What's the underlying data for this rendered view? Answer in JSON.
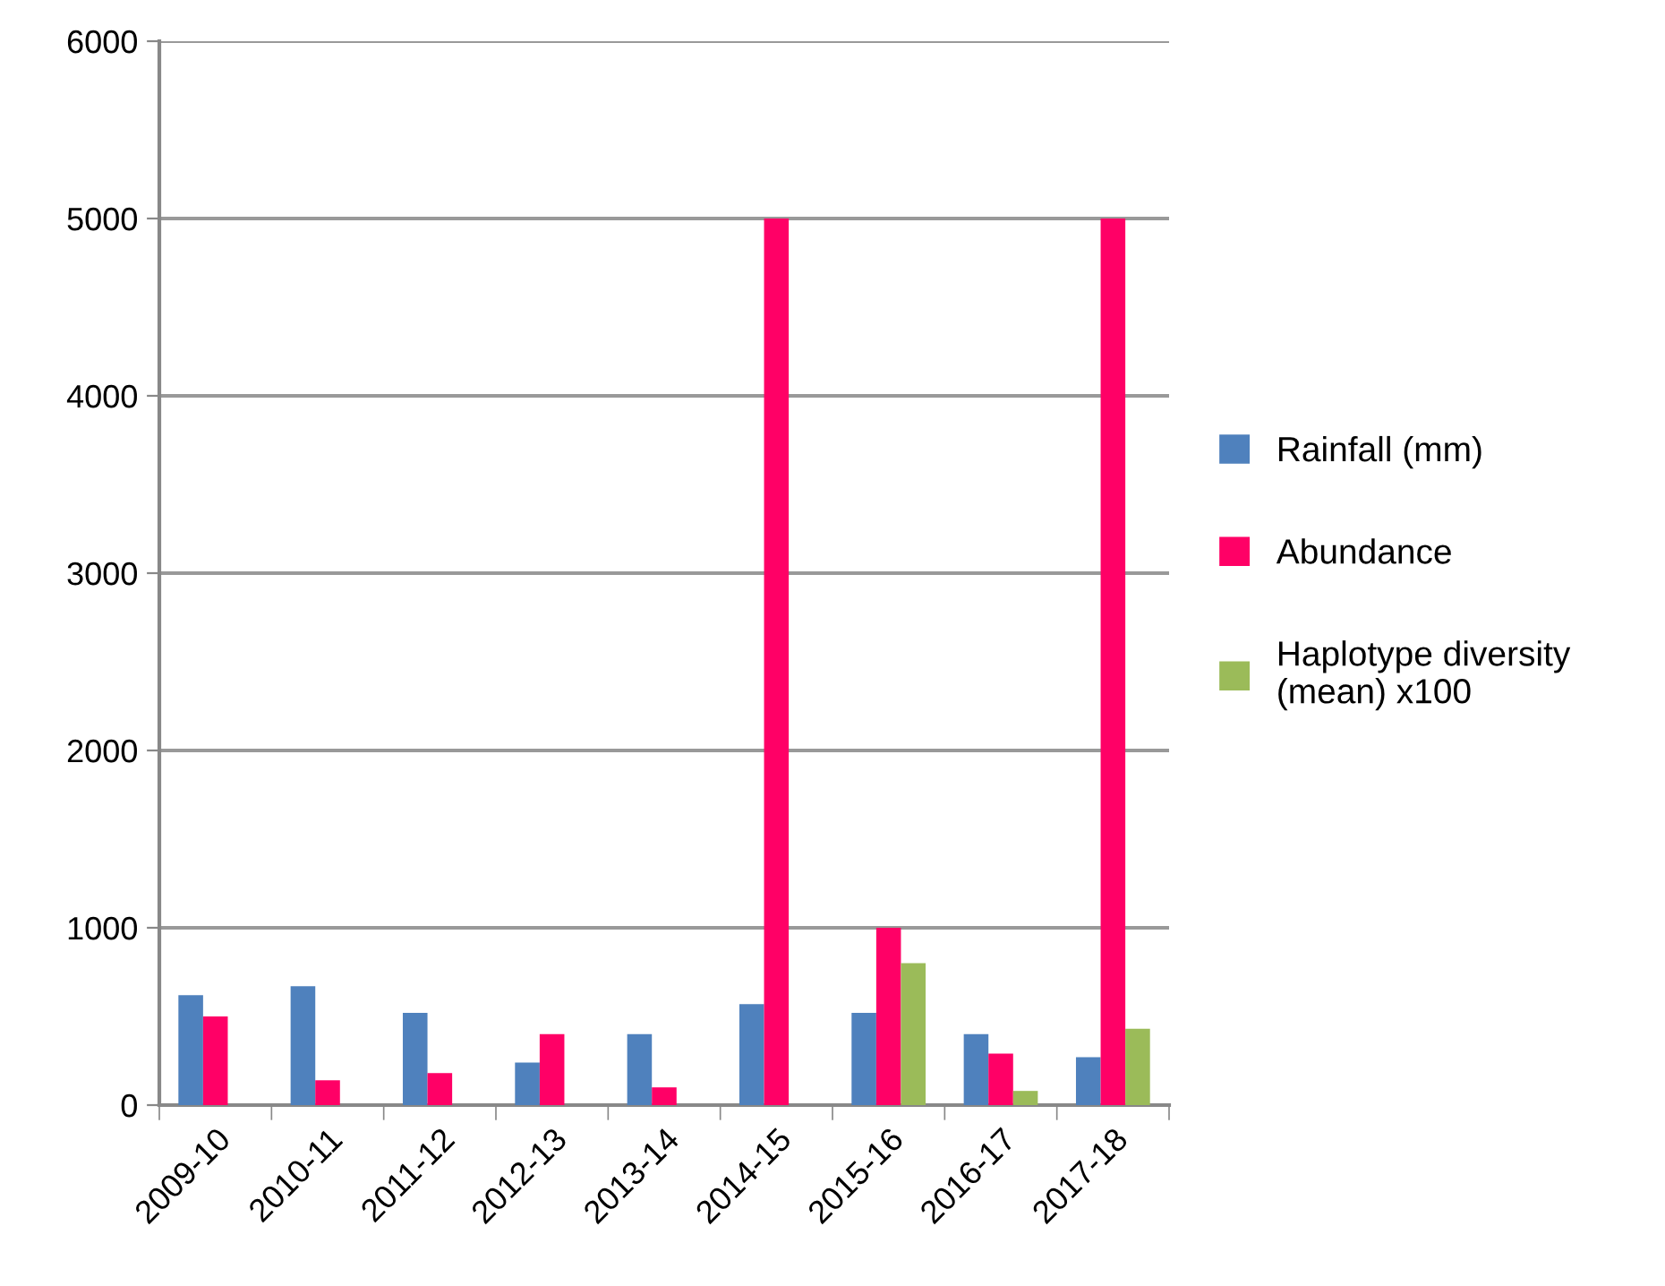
{
  "chart_data": {
    "type": "bar",
    "categories": [
      "2009-10",
      "2010-11",
      "2011-12",
      "2012-13",
      "2013-14",
      "2014-15",
      "2015-16",
      "2016-17",
      "2017-18"
    ],
    "series": [
      {
        "name": "Rainfall (mm)",
        "color": "#4f81bd",
        "values": [
          620,
          670,
          520,
          240,
          400,
          570,
          520,
          400,
          270
        ]
      },
      {
        "name": "Abundance",
        "color": "#ff0066",
        "values": [
          500,
          140,
          180,
          400,
          100,
          5000,
          1000,
          290,
          5000
        ]
      },
      {
        "name": "Haplotype diversity (mean) x100",
        "color": "#9bbb59",
        "values": [
          null,
          null,
          null,
          null,
          null,
          null,
          800,
          80,
          430
        ]
      }
    ],
    "ylim": [
      0,
      6000
    ],
    "yticks": [
      0,
      1000,
      2000,
      3000,
      4000,
      5000,
      6000
    ],
    "grid": "y",
    "legend": "right"
  }
}
